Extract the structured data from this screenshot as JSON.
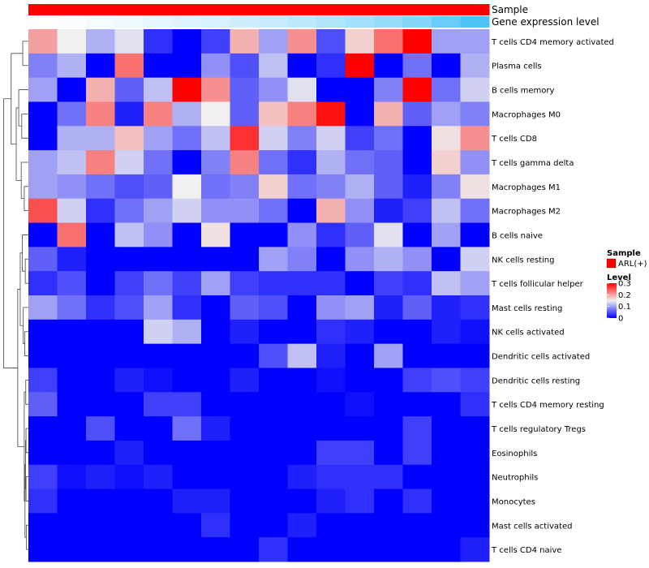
{
  "chart_data": {
    "type": "heatmap",
    "title": "",
    "annotation_tracks": [
      {
        "label": "Sample",
        "color": "#ff0000",
        "legend_title": "Sample",
        "legend_entry": "ARL(+)"
      },
      {
        "label": "Gene expression level",
        "color_from": "#ffffff",
        "color_to": "#4fc3f7"
      }
    ],
    "color_scale": {
      "title": "Level",
      "low": 0,
      "mid": 0.15,
      "high": 0.3,
      "low_color": "#0000ff",
      "mid_color": "#f0f0f0",
      "high_color": "#ff0000",
      "ticks": [
        {
          "value": 0,
          "label": "0"
        },
        {
          "value": 0.1,
          "label": "0.1"
        },
        {
          "value": 0.2,
          "label": "0.2"
        },
        {
          "value": 0.3,
          "label": "0.3"
        }
      ]
    },
    "columns": 16,
    "rows": [
      "T cells CD4 memory activated",
      "Plasma cells",
      "B cells memory",
      "Macrophages M0",
      "T cells CD8",
      "T cells gamma delta",
      "Macrophages M1",
      "Macrophages M2",
      "B cells naive",
      "NK cells resting",
      "T cells follicular helper",
      "Mast cells resting",
      "NK cells activated",
      "Dendritic cells activated",
      "Dendritic cells resting",
      "T cells CD4 memory resting",
      "T cells regulatory  Tregs",
      "Eosinophils",
      "Neutrophils",
      "Monocytes",
      "Mast cells activated",
      "T cells CD4 naive"
    ],
    "values": [
      [
        0.2,
        0.15,
        0.11,
        0.14,
        0.03,
        0.0,
        0.04,
        0.19,
        0.1,
        0.21,
        0.05,
        0.17,
        0.23,
        0.3,
        0.1,
        0.1
      ],
      [
        0.08,
        0.11,
        0.0,
        0.23,
        0.0,
        0.0,
        0.09,
        0.05,
        0.12,
        0.0,
        0.03,
        0.3,
        0.0,
        0.07,
        0.0,
        0.11
      ],
      [
        0.1,
        0.0,
        0.19,
        0.06,
        0.12,
        0.3,
        0.21,
        0.06,
        0.09,
        0.14,
        0.0,
        0.0,
        0.08,
        0.3,
        0.07,
        0.13
      ],
      [
        0.0,
        0.07,
        0.22,
        0.02,
        0.22,
        0.11,
        0.15,
        0.06,
        0.18,
        0.22,
        0.29,
        0.0,
        0.19,
        0.06,
        0.1,
        0.08
      ],
      [
        0.0,
        0.11,
        0.11,
        0.18,
        0.1,
        0.07,
        0.12,
        0.27,
        0.13,
        0.08,
        0.13,
        0.04,
        0.07,
        0.0,
        0.16,
        0.21
      ],
      [
        0.1,
        0.12,
        0.22,
        0.13,
        0.07,
        0.0,
        0.08,
        0.22,
        0.07,
        0.03,
        0.11,
        0.07,
        0.06,
        0.0,
        0.17,
        0.09
      ],
      [
        0.1,
        0.09,
        0.07,
        0.05,
        0.06,
        0.15,
        0.07,
        0.08,
        0.17,
        0.07,
        0.08,
        0.11,
        0.06,
        0.02,
        0.08,
        0.16
      ],
      [
        0.25,
        0.13,
        0.03,
        0.07,
        0.1,
        0.13,
        0.09,
        0.09,
        0.07,
        0.0,
        0.19,
        0.09,
        0.02,
        0.04,
        0.12,
        0.07
      ],
      [
        0.0,
        0.23,
        0.0,
        0.12,
        0.09,
        0.0,
        0.16,
        0.0,
        0.0,
        0.09,
        0.03,
        0.06,
        0.14,
        0.0,
        0.1,
        0.0
      ],
      [
        0.06,
        0.02,
        0.0,
        0.0,
        0.0,
        0.0,
        0.0,
        0.0,
        0.1,
        0.08,
        0.0,
        0.09,
        0.11,
        0.09,
        0.0,
        0.13
      ],
      [
        0.03,
        0.05,
        0.0,
        0.04,
        0.07,
        0.04,
        0.1,
        0.04,
        0.03,
        0.03,
        0.03,
        0.0,
        0.04,
        0.03,
        0.12,
        0.1
      ],
      [
        0.1,
        0.07,
        0.03,
        0.05,
        0.1,
        0.03,
        0.0,
        0.06,
        0.05,
        0.0,
        0.09,
        0.1,
        0.02,
        0.06,
        0.02,
        0.03
      ],
      [
        0.0,
        0.0,
        0.0,
        0.0,
        0.13,
        0.11,
        0.0,
        0.02,
        0.0,
        0.0,
        0.03,
        0.02,
        0.0,
        0.0,
        0.02,
        0.01
      ],
      [
        0.0,
        0.0,
        0.0,
        0.0,
        0.0,
        0.0,
        0.0,
        0.0,
        0.05,
        0.12,
        0.02,
        0.0,
        0.1,
        0.0,
        0.0,
        0.0
      ],
      [
        0.04,
        0.0,
        0.0,
        0.02,
        0.01,
        0.0,
        0.0,
        0.02,
        0.0,
        0.0,
        0.01,
        0.0,
        0.0,
        0.04,
        0.05,
        0.04
      ],
      [
        0.06,
        0.0,
        0.0,
        0.0,
        0.04,
        0.04,
        0.0,
        0.0,
        0.0,
        0.0,
        0.0,
        0.01,
        0.0,
        0.0,
        0.0,
        0.03
      ],
      [
        0.0,
        0.0,
        0.05,
        0.0,
        0.0,
        0.07,
        0.02,
        0.0,
        0.0,
        0.0,
        0.0,
        0.0,
        0.0,
        0.04,
        0.0,
        0.0
      ],
      [
        0.0,
        0.0,
        0.0,
        0.02,
        0.0,
        0.0,
        0.0,
        0.0,
        0.0,
        0.0,
        0.04,
        0.04,
        0.0,
        0.04,
        0.0,
        0.0
      ],
      [
        0.04,
        0.01,
        0.02,
        0.01,
        0.02,
        0.0,
        0.0,
        0.0,
        0.0,
        0.02,
        0.03,
        0.03,
        0.03,
        0.0,
        0.0,
        0.0
      ],
      [
        0.03,
        0.0,
        0.0,
        0.0,
        0.0,
        0.02,
        0.02,
        0.0,
        0.0,
        0.0,
        0.02,
        0.03,
        0.0,
        0.03,
        0.0,
        0.0
      ],
      [
        0.0,
        0.0,
        0.0,
        0.0,
        0.0,
        0.0,
        0.03,
        0.0,
        0.0,
        0.02,
        0.0,
        0.0,
        0.0,
        0.0,
        0.0,
        0.0
      ],
      [
        0.0,
        0.0,
        0.0,
        0.0,
        0.0,
        0.0,
        0.0,
        0.0,
        0.03,
        0.0,
        0.0,
        0.0,
        0.0,
        0.0,
        0.0,
        0.02
      ]
    ],
    "gene_expression_levels": [
      0.0,
      0.03,
      0.06,
      0.1,
      0.14,
      0.18,
      0.23,
      0.28,
      0.33,
      0.38,
      0.45,
      0.52,
      0.6,
      0.7,
      0.85,
      1.0
    ]
  }
}
